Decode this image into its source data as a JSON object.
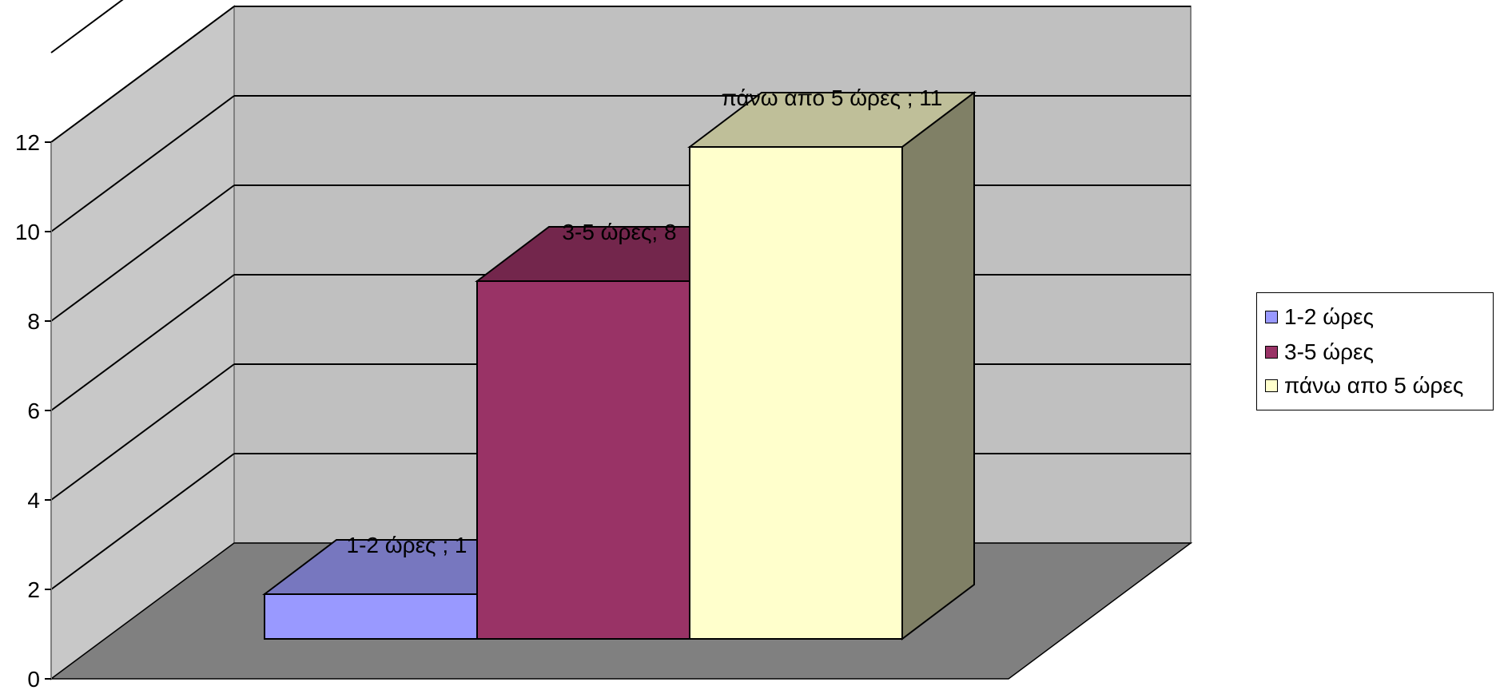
{
  "chart_data": {
    "type": "bar",
    "style": "3d-column",
    "categories": [
      "1-2 ώρες",
      "3-5 ώρες",
      "πάνω απο 5 ώρες"
    ],
    "values": [
      1,
      8,
      11
    ],
    "data_labels": [
      "1-2 ώρες ; 1",
      "3-5 ώρες; 8",
      "πάνω απο 5 ώρες ; 11"
    ],
    "ylim": [
      0,
      12
    ],
    "yticks": [
      "0",
      "2",
      "4",
      "6",
      "8",
      "10",
      "12"
    ],
    "grid": true,
    "legend": {
      "position": "right",
      "entries": [
        "1-2 ώρες",
        "3-5 ώρες",
        "πάνω απο 5 ώρες"
      ]
    },
    "colors": {
      "series": [
        {
          "front": "#9999ff",
          "top": "#7777bf",
          "side": "#6666aa"
        },
        {
          "front": "#993366",
          "top": "#73264c",
          "side": "#5f1f40"
        },
        {
          "front": "#ffffcc",
          "top": "#bfbf99",
          "side": "#808066"
        }
      ],
      "back_wall": "#c0c0c0",
      "side_wall": "#c8c8c8",
      "floor": "#808080"
    }
  }
}
